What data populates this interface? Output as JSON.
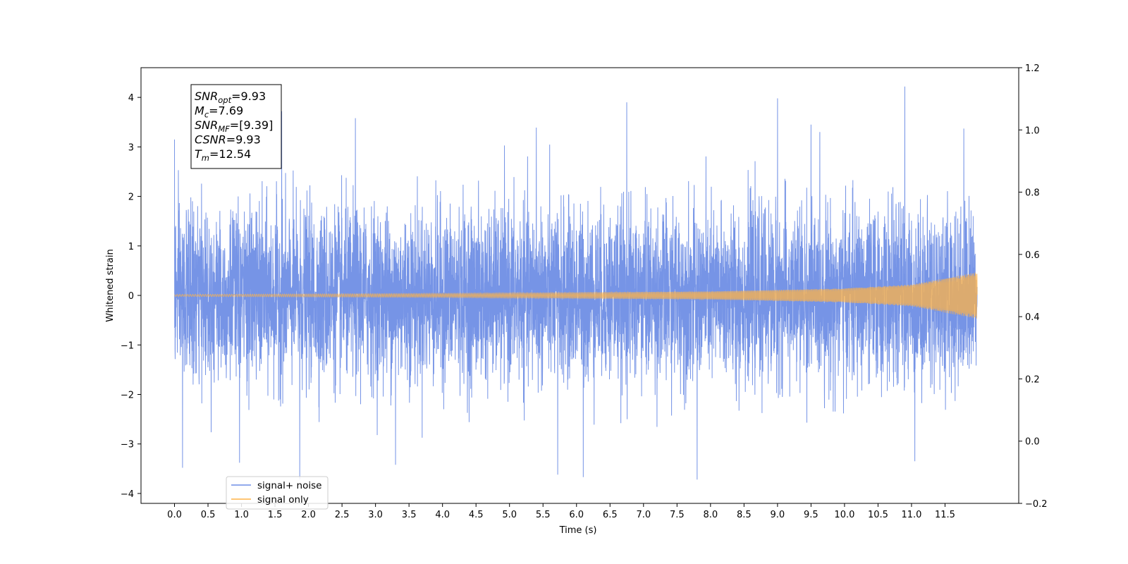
{
  "chart_data": {
    "type": "line",
    "xlabel": "Time (s)",
    "ylabel": "Whitened strain",
    "xlim": [
      -0.5,
      12.6
    ],
    "ylim": [
      -4.2,
      4.6
    ],
    "y2lim": [
      -0.2,
      1.2
    ],
    "x_ticks": [
      "0.0",
      "0.5",
      "1.0",
      "1.5",
      "2.0",
      "2.5",
      "3.0",
      "3.5",
      "4.0",
      "4.5",
      "5.0",
      "5.5",
      "6.0",
      "6.5",
      "7.0",
      "7.5",
      "8.0",
      "8.5",
      "9.0",
      "9.5",
      "10.0",
      "10.5",
      "11.0",
      "11.5"
    ],
    "y_ticks": [
      "4",
      "3",
      "2",
      "1",
      "0",
      "−1",
      "−2",
      "−3",
      "−4"
    ],
    "y2_ticks": [
      "1.2",
      "1.0",
      "0.8",
      "0.6",
      "0.4",
      "0.2",
      "0.0",
      "−0.2"
    ],
    "grid": false,
    "legend_position": "lower-left",
    "series": [
      {
        "name": "signal+ noise",
        "color": "#6f8ee5",
        "description_stats": {
          "t_start": 0.0,
          "t_end": 11.98,
          "noise_sigma": 1.0,
          "max": 4.2,
          "min": -3.7
        },
        "peaks": [
          {
            "x": 0.0,
            "y": 3.15
          },
          {
            "x": 0.12,
            "y": -3.48
          },
          {
            "x": 0.97,
            "y": -3.38
          },
          {
            "x": 1.6,
            "y": 3.72
          },
          {
            "x": 1.87,
            "y": -3.72
          },
          {
            "x": 2.7,
            "y": 3.58
          },
          {
            "x": 3.3,
            "y": -3.42
          },
          {
            "x": 5.4,
            "y": 3.39
          },
          {
            "x": 5.72,
            "y": -3.62
          },
          {
            "x": 6.1,
            "y": -3.67
          },
          {
            "x": 6.75,
            "y": 3.9
          },
          {
            "x": 7.8,
            "y": -3.72
          },
          {
            "x": 9.0,
            "y": 3.98
          },
          {
            "x": 9.5,
            "y": 3.45
          },
          {
            "x": 10.9,
            "y": 4.22
          },
          {
            "x": 11.05,
            "y": -3.35
          },
          {
            "x": 11.78,
            "y": 3.37
          }
        ]
      },
      {
        "name": "signal only",
        "color": "#ffb347",
        "envelope": [
          {
            "x": 0.0,
            "amp": 0.02
          },
          {
            "x": 4.0,
            "amp": 0.04
          },
          {
            "x": 8.0,
            "amp": 0.08
          },
          {
            "x": 10.0,
            "amp": 0.14
          },
          {
            "x": 11.0,
            "amp": 0.22
          },
          {
            "x": 11.98,
            "amp": 0.47
          }
        ]
      }
    ],
    "annotation": {
      "lines": [
        {
          "base": "SNR",
          "sub": "opt",
          "value": "=9.93"
        },
        {
          "base": "M",
          "sub": "c",
          "value": "=7.69"
        },
        {
          "base": "SNR",
          "sub": "MF",
          "value": "=[9.39]"
        },
        {
          "base": "CSNR",
          "sub": "",
          "value": "=9.93"
        },
        {
          "base": "T",
          "sub": "m",
          "value": "=12.54"
        }
      ]
    }
  }
}
